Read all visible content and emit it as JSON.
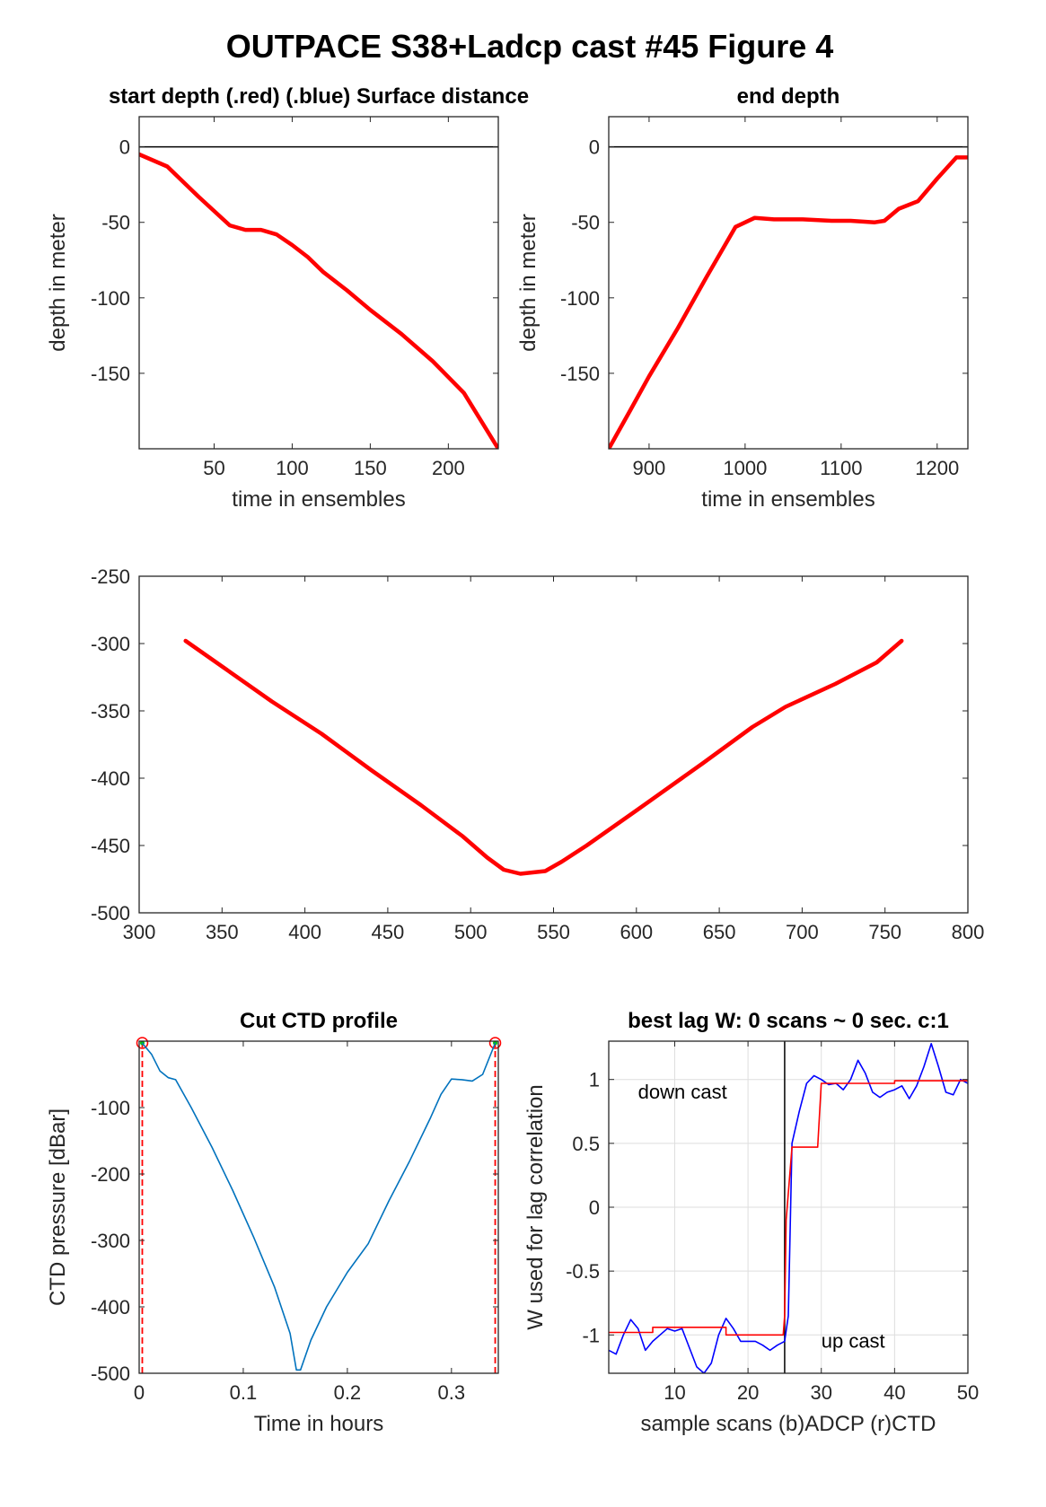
{
  "figure_title": "OUTPACE S38+Ladcp cast #45   Figure 4",
  "chart_data": [
    {
      "id": "start",
      "type": "line",
      "title": "start depth (.red) (.blue) Surface distance",
      "xlabel": "time in ensembles",
      "ylabel": "depth in meter",
      "xlim": [
        2,
        232
      ],
      "ylim": [
        -200,
        20
      ],
      "xticks": [
        50,
        100,
        150,
        200
      ],
      "xtick_labels": [
        "50",
        "100",
        "150",
        "200"
      ],
      "yticks": [
        0,
        -50,
        -100,
        -150
      ],
      "ytick_labels": [
        "0",
        "-50",
        "-100",
        "-150"
      ],
      "reference_line_y": 0,
      "series": [
        {
          "color": "#ff0000",
          "x": [
            2,
            20,
            40,
            60,
            70,
            80,
            90,
            100,
            110,
            120,
            135,
            150,
            170,
            190,
            210,
            232
          ],
          "y": [
            -5,
            -13,
            -33,
            -52,
            -55,
            -55,
            -58,
            -65,
            -73,
            -83,
            -95,
            -108,
            -124,
            -142,
            -163,
            -200
          ]
        }
      ]
    },
    {
      "id": "end",
      "type": "line",
      "title": "end depth",
      "xlabel": "time in ensembles",
      "ylabel": "depth in meter",
      "xlim": [
        858,
        1232
      ],
      "ylim": [
        -200,
        20
      ],
      "xticks": [
        900,
        1000,
        1100,
        1200
      ],
      "xtick_labels": [
        "900",
        "1000",
        "1100",
        "1200"
      ],
      "yticks": [
        0,
        -50,
        -100,
        -150
      ],
      "ytick_labels": [
        "0",
        "-50",
        "-100",
        "-150"
      ],
      "reference_line_y": 0,
      "series": [
        {
          "color": "#ff0000",
          "x": [
            858,
            880,
            900,
            930,
            960,
            990,
            1010,
            1030,
            1060,
            1090,
            1110,
            1135,
            1145,
            1160,
            1180,
            1200,
            1220,
            1232
          ],
          "y": [
            -200,
            -175,
            -152,
            -120,
            -86,
            -53,
            -47,
            -48,
            -48,
            -49,
            -49,
            -50,
            -49,
            -41,
            -36,
            -21,
            -7,
            -7
          ]
        }
      ]
    },
    {
      "id": "middle",
      "type": "line",
      "title": "",
      "xlabel": "",
      "ylabel": "",
      "xlim": [
        300,
        800
      ],
      "ylim": [
        -500,
        -250
      ],
      "xticks": [
        300,
        350,
        400,
        450,
        500,
        550,
        600,
        650,
        700,
        750,
        800
      ],
      "xtick_labels": [
        "300",
        "350",
        "400",
        "450",
        "500",
        "550",
        "600",
        "650",
        "700",
        "750",
        "800"
      ],
      "yticks": [
        -250,
        -300,
        -350,
        -400,
        -450,
        -500
      ],
      "ytick_labels": [
        "-250",
        "-300",
        "-350",
        "-400",
        "-450",
        "-500"
      ],
      "series": [
        {
          "color": "#ff0000",
          "x": [
            328,
            350,
            380,
            410,
            440,
            470,
            495,
            510,
            520,
            530,
            545,
            555,
            570,
            600,
            640,
            670,
            690,
            720,
            745,
            760
          ],
          "y": [
            -298,
            -317,
            -343,
            -367,
            -394,
            -420,
            -443,
            -459,
            -468,
            -471,
            -469,
            -462,
            -450,
            -424,
            -389,
            -362,
            -347,
            -330,
            -314,
            -298
          ]
        }
      ]
    },
    {
      "id": "cut",
      "type": "line",
      "title": "Cut CTD profile",
      "xlabel": "Time in hours",
      "ylabel": "CTD pressure [dBar]",
      "xlim": [
        0,
        0.345
      ],
      "ylim": [
        -500,
        0
      ],
      "xticks": [
        0,
        0.1,
        0.2,
        0.3
      ],
      "xtick_labels": [
        "0",
        "0.1",
        "0.2",
        "0.3"
      ],
      "yticks": [
        -100,
        -200,
        -300,
        -400,
        -500
      ],
      "ytick_labels": [
        "-100",
        "-200",
        "-300",
        "-400",
        "-500"
      ],
      "cut_markers_x": [
        0.003,
        0.342
      ],
      "series": [
        {
          "color": "#0072bd",
          "x": [
            0.003,
            0.012,
            0.02,
            0.028,
            0.035,
            0.05,
            0.07,
            0.09,
            0.11,
            0.13,
            0.145,
            0.151,
            0.155,
            0.165,
            0.18,
            0.2,
            0.22,
            0.24,
            0.26,
            0.28,
            0.29,
            0.3,
            0.31,
            0.32,
            0.33,
            0.342
          ],
          "y": [
            -3,
            -20,
            -45,
            -55,
            -58,
            -100,
            -160,
            -225,
            -295,
            -370,
            -440,
            -495,
            -495,
            -450,
            -400,
            -348,
            -305,
            -240,
            -180,
            -115,
            -80,
            -57,
            -58,
            -60,
            -50,
            -3
          ]
        }
      ]
    },
    {
      "id": "lag",
      "type": "line",
      "title": "best lag W: 0 scans ~ 0 sec.  c:1",
      "xlabel": "sample scans (b)ADCP (r)CTD",
      "ylabel": "W used for lag correlation",
      "xlim": [
        1,
        50
      ],
      "ylim": [
        -1.3,
        1.3
      ],
      "xticks": [
        10,
        20,
        30,
        40,
        50
      ],
      "xtick_labels": [
        "10",
        "20",
        "30",
        "40",
        "50"
      ],
      "yticks": [
        1,
        0.5,
        0,
        -0.5,
        -1
      ],
      "ytick_labels": [
        "1",
        "0.5",
        "0",
        "-0.5",
        "-1"
      ],
      "grid": true,
      "vline_x": 25,
      "annotations": [
        {
          "text": "down cast",
          "x": 5,
          "y": 0.85
        },
        {
          "text": "up cast",
          "x": 30,
          "y": -1.1
        }
      ],
      "series": [
        {
          "color": "#0000ff",
          "x": [
            1,
            2,
            3,
            4,
            5,
            6,
            7,
            8,
            9,
            10,
            11,
            12,
            13,
            14,
            15,
            16,
            17,
            18,
            19,
            20,
            21,
            22,
            23,
            24,
            25,
            25.5,
            26,
            27,
            28,
            29,
            30,
            31,
            32,
            33,
            34,
            35,
            36,
            37,
            38,
            39,
            40,
            41,
            42,
            43,
            44,
            45,
            46,
            47,
            48,
            49,
            50
          ],
          "y": [
            -1.12,
            -1.15,
            -1.0,
            -0.88,
            -0.95,
            -1.12,
            -1.05,
            -1.0,
            -0.95,
            -0.97,
            -0.95,
            -1.1,
            -1.25,
            -1.3,
            -1.22,
            -1.0,
            -0.87,
            -0.95,
            -1.05,
            -1.05,
            -1.05,
            -1.08,
            -1.12,
            -1.08,
            -1.05,
            -0.85,
            0.5,
            0.75,
            0.97,
            1.03,
            1.0,
            0.96,
            0.97,
            0.92,
            1.0,
            1.15,
            1.05,
            0.9,
            0.86,
            0.9,
            0.92,
            0.95,
            0.85,
            0.95,
            1.1,
            1.28,
            1.1,
            0.9,
            0.88,
            1.0,
            0.97
          ]
        },
        {
          "color": "#ff0000",
          "x": [
            1,
            7,
            7,
            17,
            17,
            24.8,
            25,
            25.2,
            26,
            29.5,
            30,
            40,
            40,
            50
          ],
          "y": [
            -0.98,
            -0.98,
            -0.94,
            -0.94,
            -1.0,
            -1.0,
            -0.85,
            -0.1,
            0.47,
            0.47,
            0.97,
            0.97,
            0.99,
            0.99
          ]
        }
      ]
    }
  ]
}
